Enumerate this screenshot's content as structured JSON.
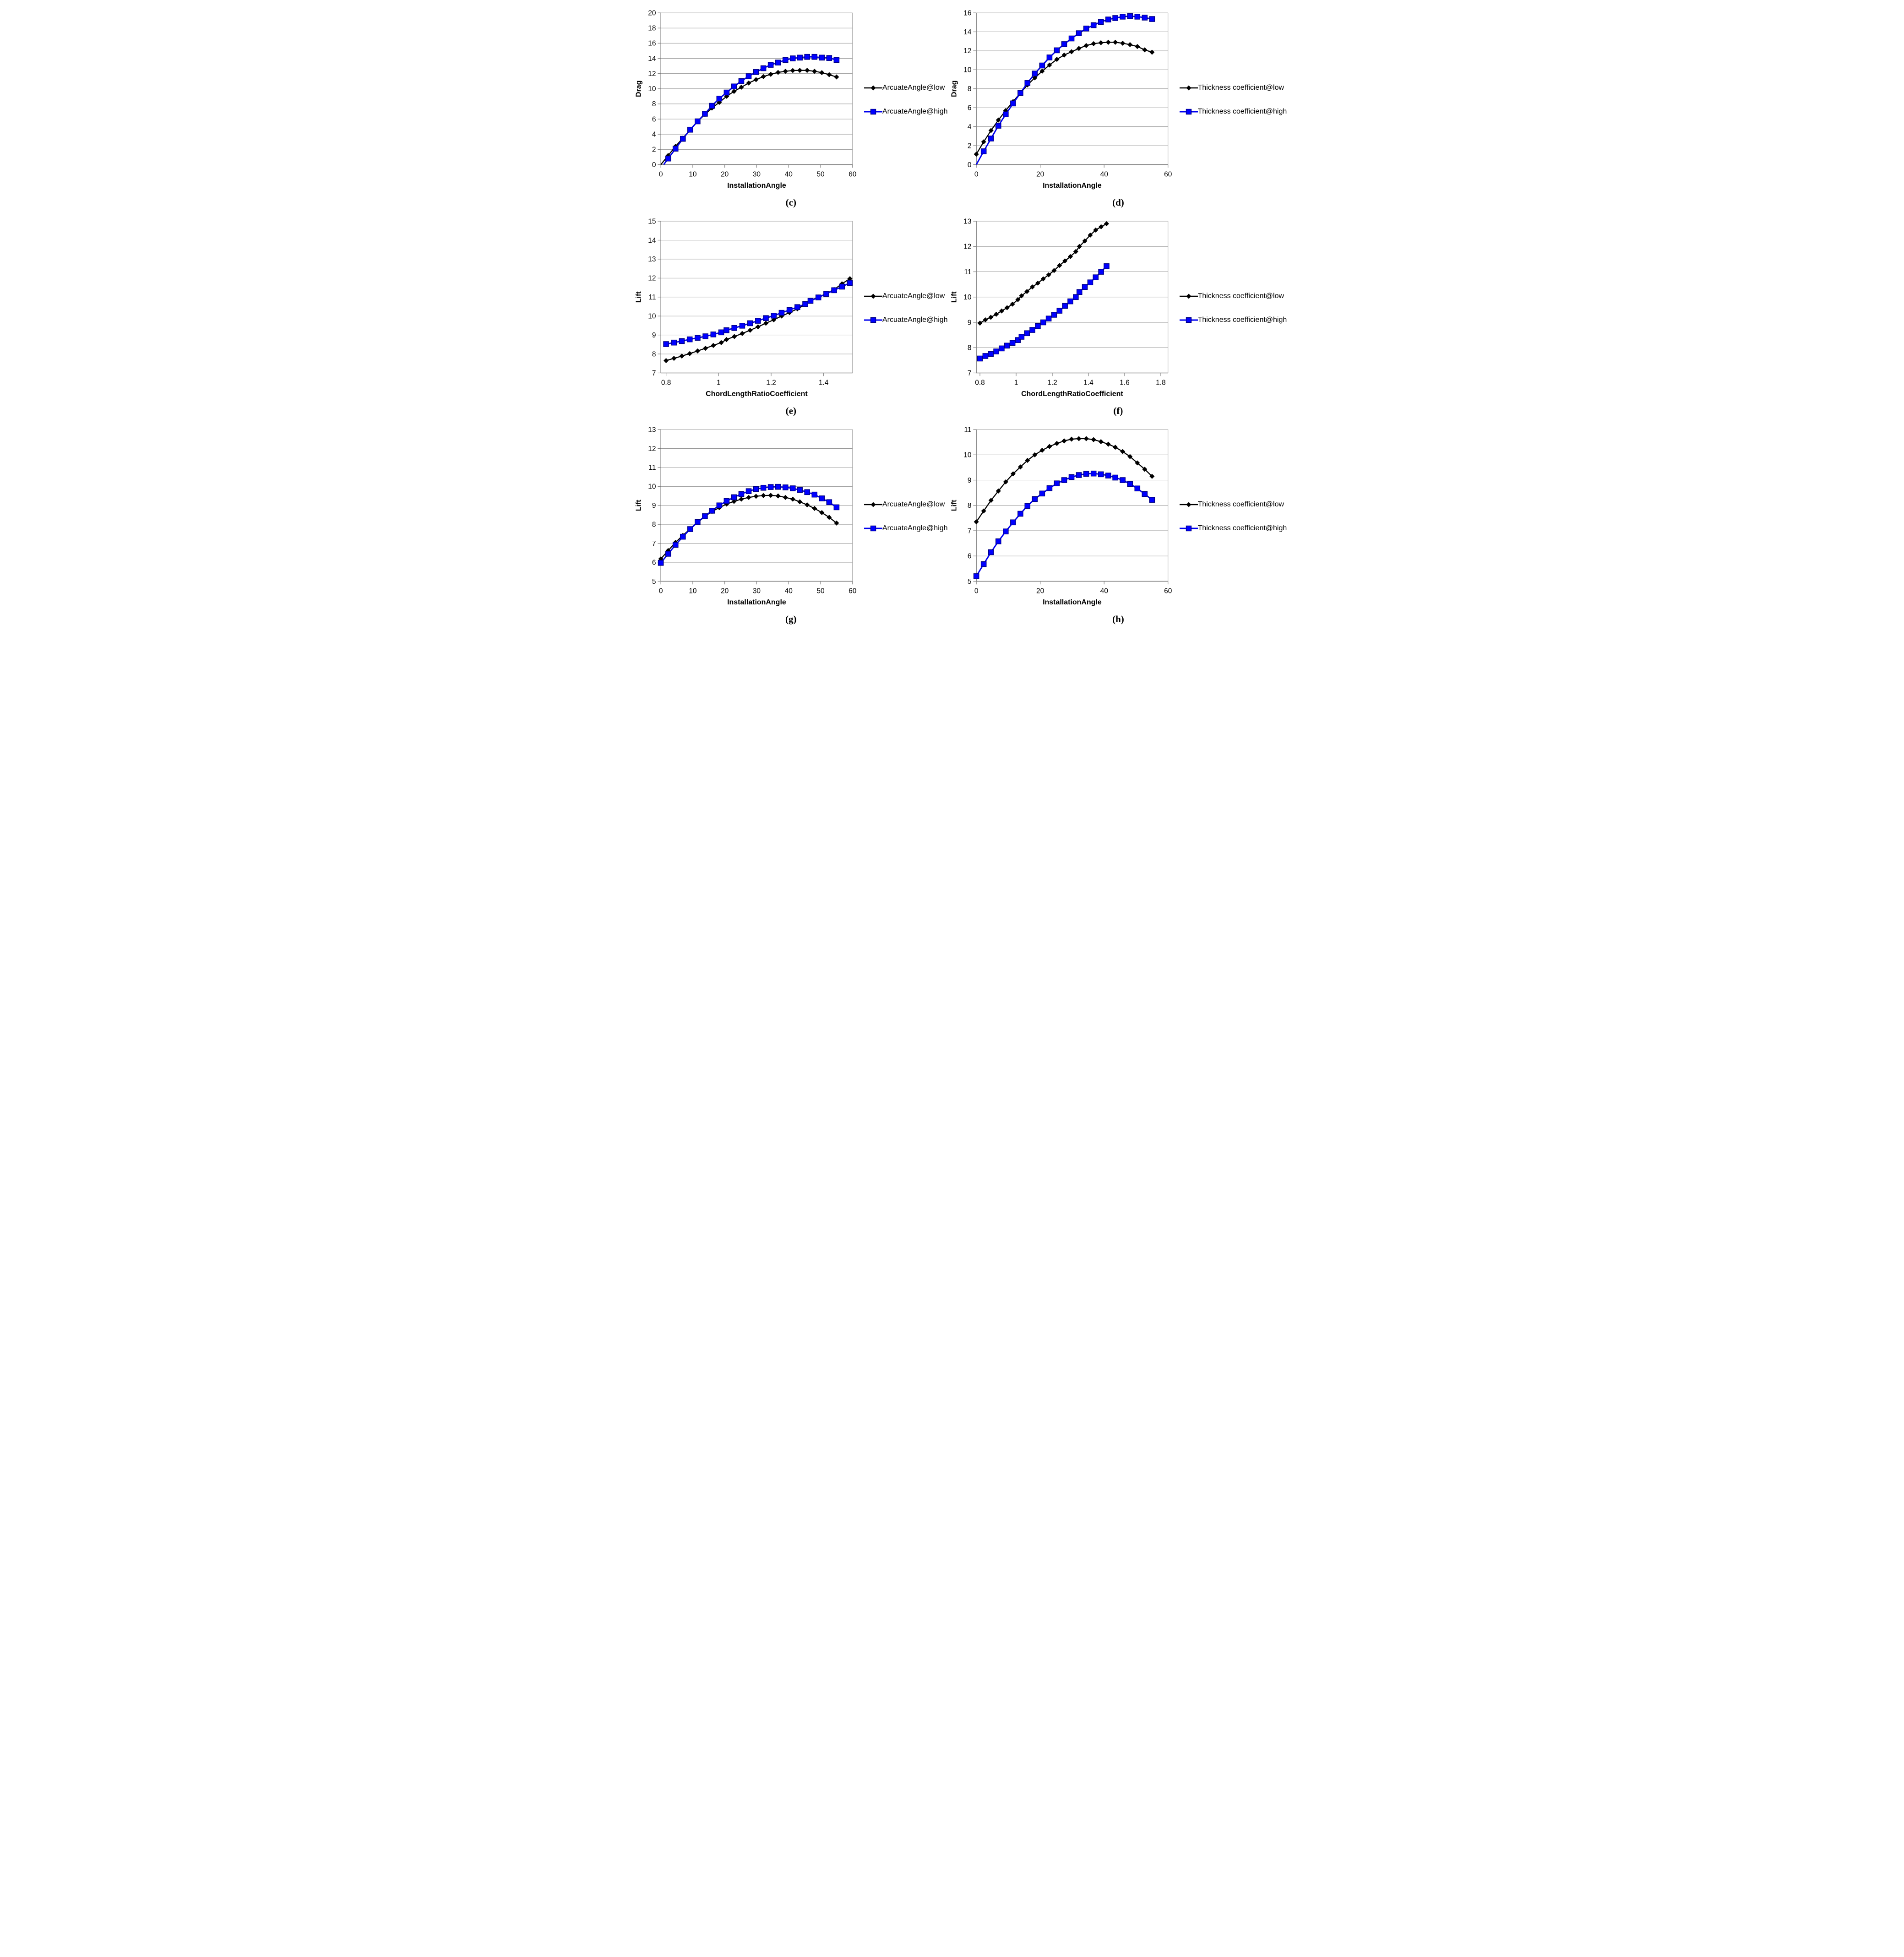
{
  "colors": {
    "background": "#ffffff",
    "series_low": "#000000",
    "series_high": "#0000ee",
    "series_high_marker_fill": "#0000ff",
    "series_high_marker_border": "#000080",
    "gridline": "#9a9a9a",
    "axis": "#7f7f7f",
    "text": "#000000"
  },
  "chart_data": [
    {
      "type": "line",
      "caption": "(c)",
      "xlabel": "InstallationAngle",
      "ylabel": "Drag",
      "xlim": [
        0,
        60
      ],
      "ylim": [
        0,
        20
      ],
      "xticks": [
        0,
        10,
        20,
        30,
        40,
        50,
        60
      ],
      "xtick_labels": [
        "0",
        "10",
        "20",
        "30",
        "40",
        "50",
        "60"
      ],
      "yticks": [
        0,
        2,
        4,
        6,
        8,
        10,
        12,
        14,
        16,
        18,
        20
      ],
      "grid": "horizontal",
      "legend_position": "right",
      "series": [
        {
          "name": "ArcuateAngle@low",
          "marker": "diamond",
          "color": "#000000",
          "pre": [
            [
              0,
              0
            ]
          ],
          "x": [
            2.3,
            4.6,
            6.9,
            9.2,
            11.5,
            13.8,
            16,
            18.3,
            20.6,
            22.9,
            25.2,
            27.5,
            29.8,
            32.1,
            34.4,
            36.7,
            39,
            41.3,
            43.5,
            45.8,
            48.1,
            50.4,
            52.7,
            55
          ],
          "y": [
            1.2,
            2.4,
            3.5,
            4.6,
            5.7,
            6.6,
            7.45,
            8.2,
            9.0,
            9.65,
            10.2,
            10.75,
            11.2,
            11.6,
            11.9,
            12.15,
            12.3,
            12.4,
            12.42,
            12.42,
            12.3,
            12.12,
            11.85,
            11.55
          ]
        },
        {
          "name": "ArcuateAngle@high",
          "marker": "square",
          "color": "#0000ee",
          "pre": [
            [
              0.9,
              0
            ]
          ],
          "x": [
            2.3,
            4.6,
            6.9,
            9.2,
            11.5,
            13.8,
            16,
            18.3,
            20.6,
            22.9,
            25.2,
            27.5,
            29.8,
            32.1,
            34.4,
            36.7,
            39,
            41.3,
            43.5,
            45.8,
            48.1,
            50.4,
            52.7,
            55
          ],
          "y": [
            0.8,
            2.1,
            3.4,
            4.6,
            5.7,
            6.7,
            7.75,
            8.7,
            9.5,
            10.3,
            11.0,
            11.65,
            12.2,
            12.7,
            13.15,
            13.45,
            13.8,
            14.0,
            14.1,
            14.2,
            14.2,
            14.1,
            14.05,
            13.8
          ]
        }
      ]
    },
    {
      "type": "line",
      "caption": "(d)",
      "xlabel": "InstallationAngle",
      "ylabel": "Drag",
      "xlim": [
        0,
        60
      ],
      "ylim": [
        0,
        16
      ],
      "xticks": [
        0,
        20,
        40,
        60
      ],
      "xtick_labels": [
        "0",
        "20",
        "40",
        "60"
      ],
      "yticks": [
        0,
        2,
        4,
        6,
        8,
        10,
        12,
        14,
        16
      ],
      "grid": "horizontal",
      "legend_position": "right",
      "series": [
        {
          "name": "Thickness coefficient@low",
          "marker": "diamond",
          "color": "#000000",
          "x": [
            0,
            2.3,
            4.6,
            6.9,
            9.2,
            11.5,
            13.8,
            16,
            18.3,
            20.6,
            22.9,
            25.2,
            27.5,
            29.8,
            32.1,
            34.4,
            36.7,
            39,
            41.3,
            43.5,
            45.8,
            48.1,
            50.4,
            52.7,
            55
          ],
          "y": [
            1.1,
            2.4,
            3.6,
            4.7,
            5.7,
            6.65,
            7.55,
            8.4,
            9.15,
            9.85,
            10.5,
            11.1,
            11.55,
            11.9,
            12.25,
            12.55,
            12.75,
            12.85,
            12.9,
            12.9,
            12.8,
            12.65,
            12.45,
            12.1,
            11.85
          ]
        },
        {
          "name": "Thickness coefficient@high",
          "marker": "square",
          "color": "#0000ee",
          "pre": [
            [
              0,
              0
            ]
          ],
          "x": [
            2.3,
            4.6,
            6.9,
            9.2,
            11.5,
            13.8,
            16,
            18.3,
            20.6,
            22.9,
            25.2,
            27.5,
            29.8,
            32.1,
            34.4,
            36.7,
            39,
            41.3,
            43.5,
            45.8,
            48.1,
            50.4,
            52.7,
            55
          ],
          "y": [
            1.4,
            2.75,
            4.1,
            5.3,
            6.45,
            7.55,
            8.6,
            9.6,
            10.45,
            11.3,
            12.05,
            12.7,
            13.3,
            13.85,
            14.35,
            14.7,
            15.05,
            15.3,
            15.45,
            15.6,
            15.65,
            15.6,
            15.5,
            15.35
          ]
        }
      ]
    },
    {
      "type": "line",
      "caption": "(e)",
      "xlabel": "ChordLengthRatioCoefficient",
      "ylabel": "Lift",
      "xlim": [
        0.78,
        1.51
      ],
      "ylim": [
        7,
        15
      ],
      "xticks": [
        0.8,
        1,
        1.2,
        1.4
      ],
      "xtick_labels": [
        "0.8",
        "1",
        "1.2",
        "1.4"
      ],
      "yticks": [
        7,
        8,
        9,
        10,
        11,
        12,
        13,
        14,
        15
      ],
      "grid": "horizontal",
      "legend_position": "right",
      "series": [
        {
          "name": "ArcuateAngle@low",
          "marker": "diamond",
          "color": "#000000",
          "x": [
            0.8,
            0.83,
            0.86,
            0.89,
            0.92,
            0.95,
            0.98,
            1.01,
            1.03,
            1.06,
            1.09,
            1.12,
            1.15,
            1.18,
            1.21,
            1.24,
            1.27,
            1.3,
            1.33,
            1.35,
            1.38,
            1.41,
            1.44,
            1.47,
            1.5
          ],
          "y": [
            7.65,
            7.77,
            7.89,
            8.02,
            8.16,
            8.3,
            8.45,
            8.6,
            8.76,
            8.92,
            9.08,
            9.25,
            9.43,
            9.62,
            9.8,
            10.0,
            10.18,
            10.38,
            10.6,
            10.82,
            11.0,
            11.18,
            11.4,
            11.7,
            11.97
          ]
        },
        {
          "name": "ArcuateAngle@high",
          "marker": "square",
          "color": "#0000ee",
          "x": [
            0.8,
            0.83,
            0.86,
            0.89,
            0.92,
            0.95,
            0.98,
            1.01,
            1.03,
            1.06,
            1.09,
            1.12,
            1.15,
            1.18,
            1.21,
            1.24,
            1.27,
            1.3,
            1.33,
            1.35,
            1.38,
            1.41,
            1.44,
            1.47,
            1.5
          ],
          "y": [
            8.52,
            8.6,
            8.68,
            8.77,
            8.85,
            8.93,
            9.03,
            9.14,
            9.25,
            9.37,
            9.49,
            9.62,
            9.75,
            9.89,
            10.02,
            10.17,
            10.32,
            10.47,
            10.63,
            10.8,
            10.98,
            11.17,
            11.36,
            11.55,
            11.75
          ]
        }
      ]
    },
    {
      "type": "line",
      "caption": "(f)",
      "xlabel": "ChordLengthRatioCoefficient",
      "ylabel": "Lift",
      "xlim": [
        0.78,
        1.84
      ],
      "ylim": [
        7,
        13
      ],
      "xticks": [
        0.8,
        1,
        1.2,
        1.4,
        1.6,
        1.8
      ],
      "xtick_labels": [
        "0.8",
        "1",
        "1.2",
        "1.4",
        "1.6",
        "1.8"
      ],
      "yticks": [
        7,
        8,
        9,
        10,
        11,
        12,
        13
      ],
      "grid": "horizontal",
      "legend_position": "right",
      "series": [
        {
          "name": "Thickness coefficient@low",
          "marker": "diamond",
          "color": "#000000",
          "x": [
            0.8,
            0.83,
            0.86,
            0.89,
            0.92,
            0.95,
            0.98,
            1.01,
            1.03,
            1.06,
            1.09,
            1.12,
            1.15,
            1.18,
            1.21,
            1.24,
            1.27,
            1.3,
            1.33,
            1.35,
            1.38,
            1.41,
            1.44,
            1.47,
            1.5
          ],
          "y": [
            8.97,
            9.1,
            9.2,
            9.32,
            9.45,
            9.58,
            9.72,
            9.9,
            10.05,
            10.22,
            10.4,
            10.55,
            10.72,
            10.88,
            11.05,
            11.25,
            11.43,
            11.6,
            11.8,
            12.0,
            12.22,
            12.45,
            12.65,
            12.78,
            12.9
          ]
        },
        {
          "name": "Thickness coefficient@high",
          "marker": "square",
          "color": "#0000ee",
          "x": [
            0.8,
            0.83,
            0.86,
            0.89,
            0.92,
            0.95,
            0.98,
            1.01,
            1.03,
            1.06,
            1.09,
            1.12,
            1.15,
            1.18,
            1.21,
            1.24,
            1.27,
            1.3,
            1.33,
            1.35,
            1.38,
            1.41,
            1.44,
            1.47,
            1.5
          ],
          "y": [
            7.57,
            7.67,
            7.75,
            7.85,
            7.97,
            8.08,
            8.19,
            8.3,
            8.43,
            8.57,
            8.7,
            8.85,
            9.0,
            9.15,
            9.3,
            9.46,
            9.65,
            9.83,
            10.0,
            10.2,
            10.4,
            10.58,
            10.78,
            11.0,
            11.22
          ]
        }
      ]
    },
    {
      "type": "line",
      "caption": "(g)",
      "xlabel": "InstallationAngle",
      "ylabel": "Lift",
      "xlim": [
        0,
        60
      ],
      "ylim": [
        5,
        13
      ],
      "xticks": [
        0,
        10,
        20,
        30,
        40,
        50,
        60
      ],
      "xtick_labels": [
        "0",
        "10",
        "20",
        "30",
        "40",
        "50",
        "60"
      ],
      "yticks": [
        5,
        6,
        7,
        8,
        9,
        10,
        11,
        12,
        13
      ],
      "grid": "horizontal",
      "legend_position": "right",
      "series": [
        {
          "name": "ArcuateAngle@low",
          "marker": "diamond",
          "color": "#000000",
          "x": [
            0,
            2.3,
            4.6,
            6.9,
            9.2,
            11.5,
            13.8,
            16,
            18.3,
            20.6,
            22.9,
            25.2,
            27.5,
            29.8,
            32.1,
            34.4,
            36.7,
            39,
            41.3,
            43.5,
            45.8,
            48.1,
            50.4,
            52.7,
            55
          ],
          "y": [
            6.18,
            6.62,
            7.05,
            7.42,
            7.76,
            8.1,
            8.42,
            8.68,
            8.88,
            9.07,
            9.21,
            9.33,
            9.42,
            9.48,
            9.52,
            9.53,
            9.5,
            9.42,
            9.33,
            9.19,
            9.03,
            8.84,
            8.62,
            8.37,
            8.07
          ]
        },
        {
          "name": "ArcuateAngle@high",
          "marker": "square",
          "color": "#0000ee",
          "x": [
            0,
            2.3,
            4.6,
            6.9,
            9.2,
            11.5,
            13.8,
            16,
            18.3,
            20.6,
            22.9,
            25.2,
            27.5,
            29.8,
            32.1,
            34.4,
            36.7,
            39,
            41.3,
            43.5,
            45.8,
            48.1,
            50.4,
            52.7,
            55
          ],
          "y": [
            5.97,
            6.45,
            6.92,
            7.35,
            7.75,
            8.12,
            8.43,
            8.72,
            9.0,
            9.23,
            9.43,
            9.6,
            9.75,
            9.86,
            9.93,
            9.97,
            9.98,
            9.95,
            9.9,
            9.81,
            9.7,
            9.57,
            9.37,
            9.17,
            8.9
          ]
        }
      ]
    },
    {
      "type": "line",
      "caption": "(h)",
      "xlabel": "InstallationAngle",
      "ylabel": "Lift",
      "xlim": [
        0,
        60
      ],
      "ylim": [
        5,
        11
      ],
      "xticks": [
        0,
        20,
        40,
        60
      ],
      "xtick_labels": [
        "0",
        "20",
        "40",
        "60"
      ],
      "yticks": [
        5,
        6,
        7,
        8,
        9,
        10,
        11
      ],
      "grid": "horizontal",
      "legend_position": "right",
      "series": [
        {
          "name": "Thickness coefficient@low",
          "marker": "diamond",
          "color": "#000000",
          "x": [
            0,
            2.3,
            4.6,
            6.9,
            9.2,
            11.5,
            13.8,
            16,
            18.3,
            20.6,
            22.9,
            25.2,
            27.5,
            29.8,
            32.1,
            34.4,
            36.7,
            39,
            41.3,
            43.5,
            45.8,
            48.1,
            50.4,
            52.7,
            55
          ],
          "y": [
            7.35,
            7.78,
            8.2,
            8.57,
            8.93,
            9.25,
            9.52,
            9.78,
            10.0,
            10.18,
            10.33,
            10.45,
            10.55,
            10.62,
            10.64,
            10.64,
            10.6,
            10.52,
            10.42,
            10.3,
            10.13,
            9.93,
            9.68,
            9.43,
            9.15
          ]
        },
        {
          "name": "Thickness coefficient@high",
          "marker": "square",
          "color": "#0000ee",
          "x": [
            0,
            2.3,
            4.6,
            6.9,
            9.2,
            11.5,
            13.8,
            16,
            18.3,
            20.6,
            22.9,
            25.2,
            27.5,
            29.8,
            32.1,
            34.4,
            36.7,
            39,
            41.3,
            43.5,
            45.8,
            48.1,
            50.4,
            52.7,
            55
          ],
          "y": [
            5.2,
            5.68,
            6.15,
            6.58,
            6.97,
            7.33,
            7.67,
            7.98,
            8.25,
            8.47,
            8.68,
            8.87,
            9.0,
            9.12,
            9.2,
            9.25,
            9.26,
            9.23,
            9.18,
            9.1,
            9.0,
            8.85,
            8.67,
            8.45,
            8.22
          ]
        }
      ]
    }
  ]
}
